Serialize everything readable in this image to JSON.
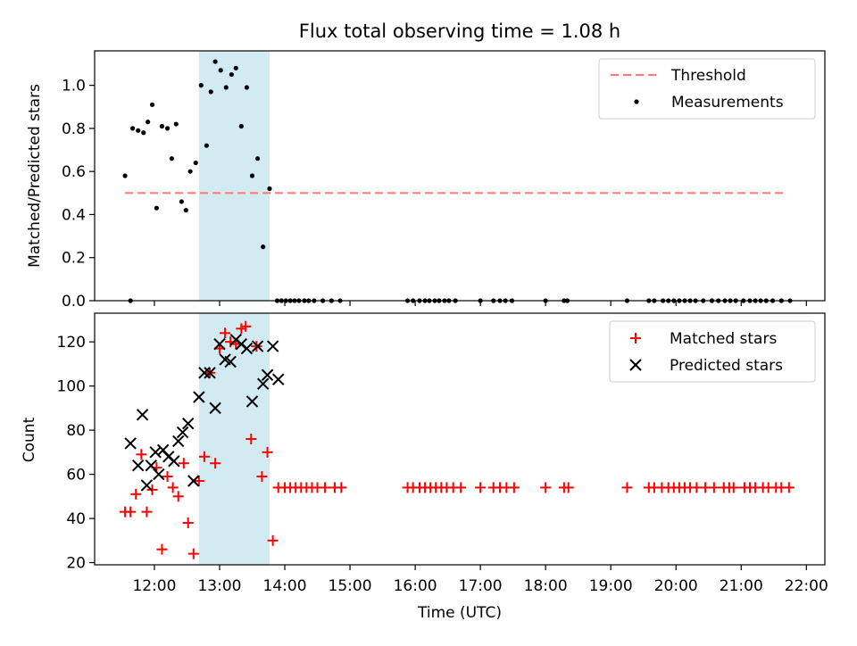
{
  "figure": {
    "title": "Flux total observing time = 1.08 h",
    "xlabel": "Time (UTC)",
    "x_tick_labels": [
      "12:00",
      "13:00",
      "14:00",
      "15:00",
      "16:00",
      "17:00",
      "18:00",
      "19:00",
      "20:00",
      "21:00",
      "22:00"
    ],
    "shaded_interval": [
      "12:41",
      "13:46"
    ],
    "shade_color": "#add8e6"
  },
  "chart_data": [
    {
      "type": "scatter",
      "ylabel": "Matched/Predicted stars",
      "xlim": [
        "11:05",
        "22:17"
      ],
      "ylim": [
        0,
        1.16
      ],
      "y_ticks": [
        0.0,
        0.2,
        0.4,
        0.6,
        0.8,
        1.0
      ],
      "y_tick_labels": [
        "0.0",
        "0.2",
        "0.4",
        "0.6",
        "0.8",
        "1.0"
      ],
      "legend_position": "upper right",
      "threshold": {
        "name": "Threshold",
        "value": 0.5,
        "x_range": [
          "11:33",
          "21:42"
        ],
        "color": "#ff7f7f"
      },
      "series": [
        {
          "name": "Measurements",
          "marker": "dot",
          "color": "#000000",
          "points": [
            [
              "11:33",
              0.58
            ],
            [
              "11:38",
              0.0
            ],
            [
              "11:40",
              0.8
            ],
            [
              "11:45",
              0.79
            ],
            [
              "11:50",
              0.78
            ],
            [
              "11:54",
              0.83
            ],
            [
              "11:58",
              0.91
            ],
            [
              "12:02",
              0.43
            ],
            [
              "12:07",
              0.81
            ],
            [
              "12:12",
              0.8
            ],
            [
              "12:16",
              0.66
            ],
            [
              "12:20",
              0.82
            ],
            [
              "12:25",
              0.46
            ],
            [
              "12:29",
              0.42
            ],
            [
              "12:33",
              0.6
            ],
            [
              "12:38",
              0.64
            ],
            [
              "12:43",
              1.0
            ],
            [
              "12:48",
              0.72
            ],
            [
              "12:52",
              0.97
            ],
            [
              "12:56",
              1.11
            ],
            [
              "13:01",
              1.07
            ],
            [
              "13:06",
              0.99
            ],
            [
              "13:11",
              1.05
            ],
            [
              "13:15",
              1.08
            ],
            [
              "13:20",
              0.81
            ],
            [
              "13:25",
              0.99
            ],
            [
              "13:30",
              0.58
            ],
            [
              "13:35",
              0.66
            ],
            [
              "13:40",
              0.25
            ],
            [
              "13:46",
              0.52
            ],
            [
              "13:53",
              0.0
            ],
            [
              "13:57",
              0.0
            ],
            [
              "14:01",
              0.0
            ],
            [
              "14:05",
              0.0
            ],
            [
              "14:09",
              0.0
            ],
            [
              "14:13",
              0.0
            ],
            [
              "14:18",
              0.0
            ],
            [
              "14:22",
              0.0
            ],
            [
              "14:27",
              0.0
            ],
            [
              "14:35",
              0.0
            ],
            [
              "14:43",
              0.0
            ],
            [
              "14:51",
              0.0
            ],
            [
              "15:53",
              0.0
            ],
            [
              "15:58",
              0.0
            ],
            [
              "16:04",
              0.0
            ],
            [
              "16:09",
              0.0
            ],
            [
              "16:13",
              0.0
            ],
            [
              "16:18",
              0.0
            ],
            [
              "16:22",
              0.0
            ],
            [
              "16:27",
              0.0
            ],
            [
              "16:31",
              0.0
            ],
            [
              "16:37",
              0.0
            ],
            [
              "17:00",
              0.0
            ],
            [
              "17:12",
              0.0
            ],
            [
              "17:18",
              0.0
            ],
            [
              "17:23",
              0.0
            ],
            [
              "17:29",
              0.0
            ],
            [
              "18:00",
              0.0
            ],
            [
              "18:17",
              0.0
            ],
            [
              "18:20",
              0.0
            ],
            [
              "19:15",
              0.0
            ],
            [
              "19:35",
              0.0
            ],
            [
              "19:40",
              0.0
            ],
            [
              "19:48",
              0.0
            ],
            [
              "19:53",
              0.0
            ],
            [
              "19:58",
              0.0
            ],
            [
              "20:03",
              0.0
            ],
            [
              "20:08",
              0.0
            ],
            [
              "20:13",
              0.0
            ],
            [
              "20:18",
              0.0
            ],
            [
              "20:25",
              0.0
            ],
            [
              "20:33",
              0.0
            ],
            [
              "20:39",
              0.0
            ],
            [
              "20:45",
              0.0
            ],
            [
              "20:50",
              0.0
            ],
            [
              "20:55",
              0.0
            ],
            [
              "21:02",
              0.0
            ],
            [
              "21:08",
              0.0
            ],
            [
              "21:13",
              0.0
            ],
            [
              "21:18",
              0.0
            ],
            [
              "21:23",
              0.0
            ],
            [
              "21:29",
              0.0
            ],
            [
              "21:37",
              0.0
            ],
            [
              "21:45",
              0.0
            ]
          ]
        }
      ]
    },
    {
      "type": "scatter",
      "ylabel": "Count",
      "xlim": [
        "11:05",
        "22:17"
      ],
      "ylim": [
        19,
        133
      ],
      "y_ticks": [
        20,
        40,
        60,
        80,
        100,
        120
      ],
      "y_tick_labels": [
        "20",
        "40",
        "60",
        "80",
        "100",
        "120"
      ],
      "legend_position": "upper right",
      "series": [
        {
          "name": "Matched stars",
          "marker": "plus",
          "color": "#ff0000",
          "points": [
            [
              "11:33",
              43
            ],
            [
              "11:38",
              43
            ],
            [
              "11:43",
              51
            ],
            [
              "11:48",
              69
            ],
            [
              "11:53",
              43
            ],
            [
              "11:58",
              53
            ],
            [
              "12:02",
              63
            ],
            [
              "12:07",
              26
            ],
            [
              "12:12",
              59
            ],
            [
              "12:17",
              54
            ],
            [
              "12:22",
              50
            ],
            [
              "12:27",
              65
            ],
            [
              "12:31",
              38
            ],
            [
              "12:36",
              24
            ],
            [
              "12:41",
              57
            ],
            [
              "12:46",
              68
            ],
            [
              "12:51",
              106
            ],
            [
              "12:56",
              65
            ],
            [
              "13:00",
              117
            ],
            [
              "13:05",
              124
            ],
            [
              "13:10",
              120
            ],
            [
              "13:15",
              119
            ],
            [
              "13:20",
              126
            ],
            [
              "13:24",
              127
            ],
            [
              "13:29",
              76
            ],
            [
              "13:34",
              118
            ],
            [
              "13:39",
              59
            ],
            [
              "13:44",
              70
            ],
            [
              "13:49",
              30
            ],
            [
              "13:54",
              54
            ],
            [
              "14:00",
              54
            ],
            [
              "14:05",
              54
            ],
            [
              "14:10",
              54
            ],
            [
              "14:15",
              54
            ],
            [
              "14:20",
              54
            ],
            [
              "14:25",
              54
            ],
            [
              "14:30",
              54
            ],
            [
              "14:37",
              54
            ],
            [
              "14:46",
              54
            ],
            [
              "14:52",
              54
            ],
            [
              "15:53",
              54
            ],
            [
              "15:58",
              54
            ],
            [
              "16:04",
              54
            ],
            [
              "16:09",
              54
            ],
            [
              "16:14",
              54
            ],
            [
              "16:19",
              54
            ],
            [
              "16:24",
              54
            ],
            [
              "16:29",
              54
            ],
            [
              "16:35",
              54
            ],
            [
              "16:42",
              54
            ],
            [
              "17:00",
              54
            ],
            [
              "17:12",
              54
            ],
            [
              "17:18",
              54
            ],
            [
              "17:24",
              54
            ],
            [
              "17:31",
              54
            ],
            [
              "18:00",
              54
            ],
            [
              "18:17",
              54
            ],
            [
              "18:21",
              54
            ],
            [
              "19:15",
              54
            ],
            [
              "19:35",
              54
            ],
            [
              "19:40",
              54
            ],
            [
              "19:47",
              54
            ],
            [
              "19:53",
              54
            ],
            [
              "19:58",
              54
            ],
            [
              "20:03",
              54
            ],
            [
              "20:08",
              54
            ],
            [
              "20:13",
              54
            ],
            [
              "20:19",
              54
            ],
            [
              "20:27",
              54
            ],
            [
              "20:35",
              54
            ],
            [
              "20:44",
              54
            ],
            [
              "20:49",
              54
            ],
            [
              "20:53",
              54
            ],
            [
              "21:03",
              54
            ],
            [
              "21:08",
              54
            ],
            [
              "21:13",
              54
            ],
            [
              "21:20",
              54
            ],
            [
              "21:25",
              54
            ],
            [
              "21:32",
              54
            ],
            [
              "21:37",
              54
            ],
            [
              "21:44",
              54
            ]
          ]
        },
        {
          "name": "Predicted stars",
          "marker": "x",
          "color": "#000000",
          "points": [
            [
              "11:38",
              74
            ],
            [
              "11:45",
              64
            ],
            [
              "11:49",
              87
            ],
            [
              "11:53",
              55
            ],
            [
              "11:57",
              64
            ],
            [
              "12:01",
              70
            ],
            [
              "12:04",
              60
            ],
            [
              "12:08",
              71
            ],
            [
              "12:13",
              68
            ],
            [
              "12:18",
              66
            ],
            [
              "12:22",
              75
            ],
            [
              "12:26",
              79
            ],
            [
              "12:31",
              83
            ],
            [
              "12:36",
              57
            ],
            [
              "12:41",
              95
            ],
            [
              "12:46",
              106
            ],
            [
              "12:51",
              106
            ],
            [
              "12:56",
              90
            ],
            [
              "13:00",
              119
            ],
            [
              "13:05",
              112
            ],
            [
              "13:10",
              111
            ],
            [
              "13:15",
              121
            ],
            [
              "13:20",
              119
            ],
            [
              "13:25",
              117
            ],
            [
              "13:30",
              93
            ],
            [
              "13:35",
              118
            ],
            [
              "13:40",
              101
            ],
            [
              "13:44",
              105
            ],
            [
              "13:49",
              118
            ],
            [
              "13:54",
              103
            ]
          ]
        }
      ]
    }
  ]
}
